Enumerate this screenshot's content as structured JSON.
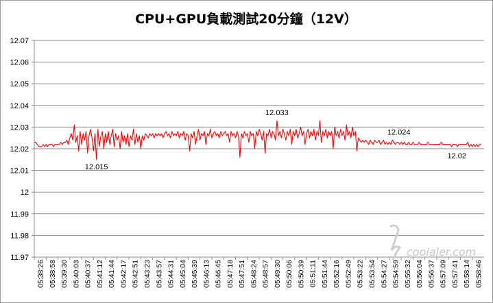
{
  "chart_data": {
    "type": "line",
    "title": "CPU+GPU負載測試20分鐘（12V）",
    "xlabel": "",
    "ylabel": "",
    "ylim": [
      11.97,
      12.07
    ],
    "y_ticks": [
      "12.07",
      "12.06",
      "12.05",
      "12.04",
      "12.03",
      "12.02",
      "12.01",
      "12",
      "11.99",
      "11.98",
      "11.97"
    ],
    "x_tick_labels": [
      "05:38:26",
      "05:38:58",
      "05:39:30",
      "05:40:03",
      "05:40:37",
      "05:41:12",
      "05:41:44",
      "05:42:17",
      "05:42:51",
      "05:43:23",
      "05:43:57",
      "05:44:31",
      "05:45:04",
      "05:45:39",
      "05:46:13",
      "05:46:45",
      "05:47:18",
      "05:47:51",
      "05:48:24",
      "05:48:57",
      "05:49:30",
      "05:50:06",
      "05:50:39",
      "05:51:11",
      "05:51:44",
      "05:52:16",
      "05:52:49",
      "05:53:22",
      "05:53:54",
      "05:54:27",
      "05:54:59",
      "05:55:32",
      "05:56:04",
      "05:56:37",
      "05:57:09",
      "05:57:41",
      "05:58:14",
      "05:58:46"
    ],
    "grid": true,
    "legend": "none",
    "series": [
      {
        "color": "#ff0000",
        "samples_per_tick": 8,
        "values": [
          12.023,
          12.023,
          12.022,
          12.021,
          12.021,
          12.021,
          12.022,
          12.021,
          12.022,
          12.021,
          12.022,
          12.022,
          12.022,
          12.021,
          12.022,
          12.022,
          12.022,
          12.022,
          12.023,
          12.022,
          12.023,
          12.023,
          12.024,
          12.022,
          12.025,
          12.027,
          12.024,
          12.031,
          12.023,
          12.026,
          12.019,
          12.028,
          12.022,
          12.027,
          12.024,
          12.028,
          12.018,
          12.026,
          12.029,
          12.025,
          12.019,
          12.027,
          12.015,
          12.029,
          12.021,
          12.026,
          12.028,
          12.02,
          12.027,
          12.023,
          12.028,
          12.022,
          12.026,
          12.029,
          12.021,
          12.027,
          12.024,
          12.026,
          12.02,
          12.028,
          12.023,
          12.026,
          12.022,
          12.027,
          12.021,
          12.026,
          12.024,
          12.029,
          12.022,
          12.027,
          12.023,
          12.026,
          12.02,
          12.026,
          12.024,
          12.027,
          12.026,
          12.025,
          12.027,
          12.026,
          12.027,
          12.025,
          12.027,
          12.026,
          12.027,
          12.026,
          12.027,
          12.025,
          12.027,
          12.028,
          12.026,
          12.027,
          12.025,
          12.028,
          12.026,
          12.027,
          12.026,
          12.028,
          12.025,
          12.027,
          12.026,
          12.028,
          12.024,
          12.027,
          12.026,
          12.019,
          12.027,
          12.025,
          12.028,
          12.022,
          12.026,
          12.029,
          12.024,
          12.027,
          12.026,
          12.028,
          12.022,
          12.027,
          12.026,
          12.029,
          12.025,
          12.027,
          12.028,
          12.026,
          12.027,
          12.025,
          12.028,
          12.026,
          12.027,
          12.028,
          12.026,
          12.027,
          12.023,
          12.028,
          12.026,
          12.027,
          12.025,
          12.028,
          12.026,
          12.016,
          12.027,
          12.025,
          12.028,
          12.026,
          12.027,
          12.023,
          12.028,
          12.026,
          12.027,
          12.02,
          12.028,
          12.026,
          12.029,
          12.027,
          12.024,
          12.028,
          12.018,
          12.027,
          12.026,
          12.029,
          12.025,
          12.028,
          12.027,
          12.024,
          12.033,
          12.026,
          12.028,
          12.025,
          12.029,
          12.027,
          12.024,
          12.028,
          12.026,
          12.029,
          12.022,
          12.028,
          12.026,
          12.029,
          12.025,
          12.027,
          12.03,
          12.026,
          12.028,
          12.022,
          12.027,
          12.029,
          12.025,
          12.028,
          12.026,
          12.029,
          12.024,
          12.028,
          12.026,
          12.033,
          12.023,
          12.028,
          12.026,
          12.029,
          12.025,
          12.028,
          12.026,
          12.028,
          12.02,
          12.03,
          12.026,
          12.028,
          12.025,
          12.029,
          12.026,
          12.028,
          12.024,
          12.031,
          12.026,
          12.028,
          12.025,
          12.03,
          12.026,
          12.028,
          12.019,
          12.025,
          12.024,
          12.023,
          12.024,
          12.023,
          12.024,
          12.023,
          12.022,
          12.024,
          12.023,
          12.022,
          12.024,
          12.023,
          12.023,
          12.024,
          12.022,
          12.023,
          12.024,
          12.022,
          12.023,
          12.022,
          12.023,
          12.022,
          12.024,
          12.023,
          12.022,
          12.023,
          12.023,
          12.022,
          12.023,
          12.022,
          12.023,
          12.022,
          12.022,
          12.023,
          12.022,
          12.022,
          12.023,
          12.022,
          12.022,
          12.022,
          12.023,
          12.022,
          12.022,
          12.022,
          12.022,
          12.022,
          12.023,
          12.022,
          12.022,
          12.022,
          12.022,
          12.022,
          12.022,
          12.022,
          12.022,
          12.023,
          12.022,
          12.022,
          12.022,
          12.022,
          12.022,
          12.022,
          12.021,
          12.022,
          12.022,
          12.022,
          12.021,
          12.022,
          12.022,
          12.022,
          12.022,
          12.022,
          12.022,
          12.023,
          12.021,
          12.022,
          12.021,
          12.022,
          12.021,
          12.022,
          12.021,
          12.022,
          12.022
        ]
      }
    ],
    "annotations": [
      {
        "text": "12.015",
        "x_tick_index": 5.25,
        "y": 12.015,
        "position": "below"
      },
      {
        "text": "12.033",
        "x_tick_index": 20.5,
        "y": 12.033,
        "position": "above"
      },
      {
        "text": "12.024",
        "x_tick_index": 30.8,
        "y": 12.024,
        "position": "above"
      },
      {
        "text": "12.02",
        "x_tick_index": 35.7,
        "y": 12.02,
        "position": "below"
      }
    ]
  },
  "watermark": {
    "text": "coolaler.com"
  }
}
